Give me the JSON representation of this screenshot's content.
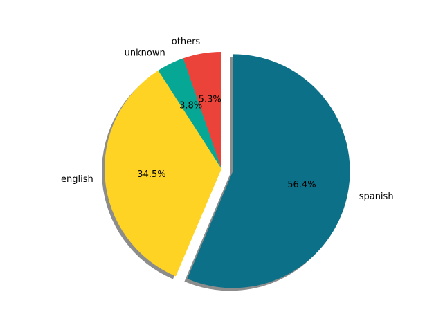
{
  "chart_data": {
    "type": "pie",
    "categories": [
      "spanish",
      "english",
      "unknown",
      "others"
    ],
    "values": [
      56.4,
      34.5,
      3.8,
      5.3
    ],
    "percent_labels": [
      "56.4%",
      "34.5%",
      "3.8%",
      "5.3%"
    ],
    "colors": [
      "#0b7088",
      "#fed323",
      "#07a796",
      "#eb4339"
    ],
    "exploded": [
      "spanish"
    ],
    "shadow": true,
    "start_angle_deg": 90,
    "direction": "clockwise",
    "title": "",
    "legend": "none"
  }
}
